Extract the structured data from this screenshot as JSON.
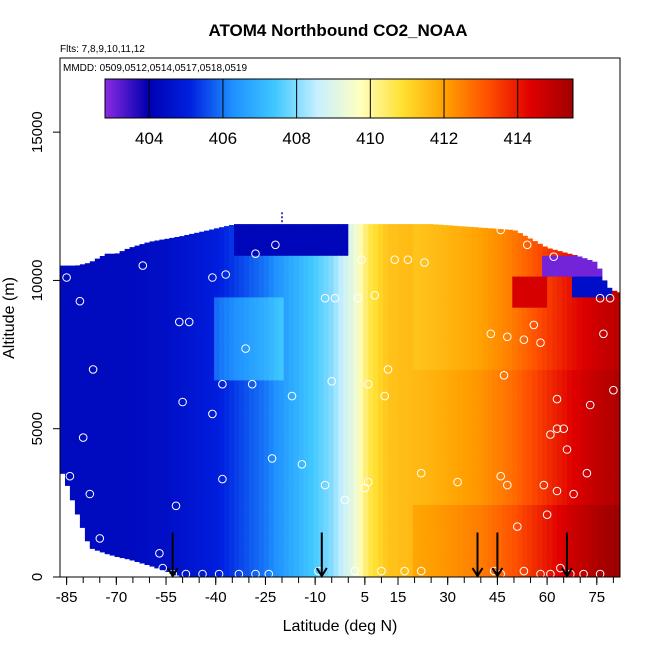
{
  "chart_data": {
    "type": "heatmap",
    "title": "ATOM4 Northbound CO2_NOAA",
    "subtitle_flights": "Flts: 7,8,9,10,11,12",
    "subtitle_dates": "MMDD: 0509,0512,0514,0517,0518,0519",
    "xlabel": "Latitude (deg N)",
    "ylabel": "Altitude (m)",
    "xlim": [
      -87,
      82
    ],
    "ylim": [
      0,
      17500
    ],
    "x_tick_labels": [
      "-85",
      "-70",
      "-55",
      "-40",
      "-25",
      "-10",
      "5",
      "15",
      "30",
      "45",
      "60",
      "75"
    ],
    "x_tick_values": [
      -85,
      -70,
      -55,
      -40,
      -25,
      -10,
      5,
      15,
      30,
      45,
      60,
      75
    ],
    "y_tick_labels": [
      "0",
      "5000",
      "10000",
      "15000"
    ],
    "y_tick_values": [
      0,
      5000,
      10000,
      15000
    ],
    "colorbar": {
      "range": [
        402.8,
        415.5
      ],
      "tick_values": [
        404,
        406,
        408,
        410,
        412,
        414
      ],
      "tick_labels": [
        "404",
        "406",
        "408",
        "410",
        "412",
        "414"
      ],
      "colors": [
        "#8b2be2",
        "#0000b0",
        "#0020e0",
        "#1e90ff",
        "#40c8ff",
        "#c8f0ff",
        "#ffffc0",
        "#ffe030",
        "#ffa000",
        "#ff5000",
        "#e00000",
        "#a00000"
      ]
    },
    "curtain_profile": [
      {
        "lat": -86,
        "top": 10500,
        "bottom": 3500
      },
      {
        "lat": -82,
        "top": 10500,
        "bottom": 2200
      },
      {
        "lat": -78,
        "top": 10600,
        "bottom": 1000
      },
      {
        "lat": -73,
        "top": 10900,
        "bottom": 800
      },
      {
        "lat": -70,
        "top": 10900,
        "bottom": 700
      },
      {
        "lat": -66,
        "top": 11100,
        "bottom": 600
      },
      {
        "lat": -60,
        "top": 11300,
        "bottom": 400
      },
      {
        "lat": -50,
        "top": 11500,
        "bottom": 0
      },
      {
        "lat": -34,
        "top": 11900,
        "bottom": 0
      },
      {
        "lat": 25,
        "top": 11900,
        "bottom": 0
      },
      {
        "lat": 50,
        "top": 11700,
        "bottom": 0
      },
      {
        "lat": 60,
        "top": 11100,
        "bottom": 0
      },
      {
        "lat": 70,
        "top": 10800,
        "bottom": 0
      },
      {
        "lat": 75,
        "top": 10600,
        "bottom": 0
      },
      {
        "lat": 78,
        "top": 9800,
        "bottom": 0
      },
      {
        "lat": 81,
        "top": 9600,
        "bottom": 0
      }
    ],
    "co2_by_latitude": [
      {
        "lat": -86,
        "value": 404.3
      },
      {
        "lat": -70,
        "value": 404.3
      },
      {
        "lat": -55,
        "value": 404.5
      },
      {
        "lat": -40,
        "value": 405.0
      },
      {
        "lat": -25,
        "value": 406.0
      },
      {
        "lat": -15,
        "value": 407.0
      },
      {
        "lat": -5,
        "value": 408.0
      },
      {
        "lat": 2,
        "value": 409.3
      },
      {
        "lat": 6,
        "value": 410.6
      },
      {
        "lat": 12,
        "value": 411.4
      },
      {
        "lat": 25,
        "value": 411.7
      },
      {
        "lat": 40,
        "value": 412.2
      },
      {
        "lat": 50,
        "value": 412.8
      },
      {
        "lat": 58,
        "value": 413.5
      },
      {
        "lat": 66,
        "value": 414.2
      },
      {
        "lat": 75,
        "value": 414.9
      },
      {
        "lat": 81,
        "value": 415.2
      }
    ],
    "upper_layer_anomalies": [
      {
        "lat_from": 58,
        "lat_to": 76,
        "alt_from": 10100,
        "alt_to": 10700,
        "value": 403.0
      },
      {
        "lat_from": 68,
        "lat_to": 80,
        "alt_from": 9400,
        "alt_to": 10100,
        "value": 404.5
      },
      {
        "lat_from": 50,
        "lat_to": 60,
        "alt_from": 9000,
        "alt_to": 10000,
        "value": 414.5
      },
      {
        "lat_from": -34,
        "lat_to": 0,
        "alt_from": 11000,
        "alt_to": 11900,
        "value": 404.2
      }
    ],
    "sample_points": [
      {
        "lat": -85,
        "alt": 10100
      },
      {
        "lat": -81,
        "alt": 9300
      },
      {
        "lat": -80,
        "alt": 4700
      },
      {
        "lat": -77,
        "alt": 7000
      },
      {
        "lat": -78,
        "alt": 2800
      },
      {
        "lat": -84,
        "alt": 3400
      },
      {
        "lat": -75,
        "alt": 1300
      },
      {
        "lat": -62,
        "alt": 10500
      },
      {
        "lat": -51,
        "alt": 8600
      },
      {
        "lat": -48,
        "alt": 8600
      },
      {
        "lat": -50,
        "alt": 5900
      },
      {
        "lat": -52,
        "alt": 2400
      },
      {
        "lat": -57,
        "alt": 800
      },
      {
        "lat": -56,
        "alt": 300
      },
      {
        "lat": -53,
        "alt": 100
      },
      {
        "lat": -49,
        "alt": 100
      },
      {
        "lat": -44,
        "alt": 100
      },
      {
        "lat": -39,
        "alt": 100
      },
      {
        "lat": -33,
        "alt": 100
      },
      {
        "lat": -28,
        "alt": 100
      },
      {
        "lat": -24,
        "alt": 100
      },
      {
        "lat": -41,
        "alt": 10100
      },
      {
        "lat": -37,
        "alt": 10200
      },
      {
        "lat": -28,
        "alt": 10900
      },
      {
        "lat": -22,
        "alt": 11200
      },
      {
        "lat": -31,
        "alt": 7700
      },
      {
        "lat": -29,
        "alt": 6500
      },
      {
        "lat": -38,
        "alt": 6500
      },
      {
        "lat": -41,
        "alt": 5500
      },
      {
        "lat": -38,
        "alt": 3300
      },
      {
        "lat": -23,
        "alt": 4000
      },
      {
        "lat": -17,
        "alt": 6100
      },
      {
        "lat": -14,
        "alt": 3800
      },
      {
        "lat": -7,
        "alt": 9400
      },
      {
        "lat": -4,
        "alt": 9400
      },
      {
        "lat": -5,
        "alt": 6600
      },
      {
        "lat": -7,
        "alt": 3100
      },
      {
        "lat": -1,
        "alt": 2600
      },
      {
        "lat": 2,
        "alt": 200
      },
      {
        "lat": -9,
        "alt": 200
      },
      {
        "lat": 3,
        "alt": 9400
      },
      {
        "lat": 4,
        "alt": 10700
      },
      {
        "lat": 8,
        "alt": 9500
      },
      {
        "lat": 6,
        "alt": 6500
      },
      {
        "lat": 11,
        "alt": 6100
      },
      {
        "lat": 12,
        "alt": 7000
      },
      {
        "lat": 5,
        "alt": 3000
      },
      {
        "lat": 6,
        "alt": 3200
      },
      {
        "lat": 10,
        "alt": 200
      },
      {
        "lat": 14,
        "alt": 10700
      },
      {
        "lat": 18,
        "alt": 10700
      },
      {
        "lat": 23,
        "alt": 10600
      },
      {
        "lat": 17,
        "alt": 200
      },
      {
        "lat": 22,
        "alt": 200
      },
      {
        "lat": 22,
        "alt": 3500
      },
      {
        "lat": 33,
        "alt": 3200
      },
      {
        "lat": 43,
        "alt": 8200
      },
      {
        "lat": 48,
        "alt": 8100
      },
      {
        "lat": 47,
        "alt": 6800
      },
      {
        "lat": 53,
        "alt": 8000
      },
      {
        "lat": 56,
        "alt": 8500
      },
      {
        "lat": 58,
        "alt": 7900
      },
      {
        "lat": 46,
        "alt": 3400
      },
      {
        "lat": 48,
        "alt": 3100
      },
      {
        "lat": 51,
        "alt": 1700
      },
      {
        "lat": 59,
        "alt": 3100
      },
      {
        "lat": 60,
        "alt": 2100
      },
      {
        "lat": 63,
        "alt": 2900
      },
      {
        "lat": 66,
        "alt": 4300
      },
      {
        "lat": 68,
        "alt": 2800
      },
      {
        "lat": 72,
        "alt": 3500
      },
      {
        "lat": 63,
        "alt": 6000
      },
      {
        "lat": 65,
        "alt": 5000
      },
      {
        "lat": 61,
        "alt": 4800
      },
      {
        "lat": 63,
        "alt": 5000
      },
      {
        "lat": 73,
        "alt": 5800
      },
      {
        "lat": 77,
        "alt": 8200
      },
      {
        "lat": 80,
        "alt": 6300
      },
      {
        "lat": 76,
        "alt": 9400
      },
      {
        "lat": 79,
        "alt": 9400
      },
      {
        "lat": 62,
        "alt": 10800
      },
      {
        "lat": 54,
        "alt": 11200
      },
      {
        "lat": 46,
        "alt": 11700
      },
      {
        "lat": 44,
        "alt": 200
      },
      {
        "lat": 46,
        "alt": 100
      },
      {
        "lat": 53,
        "alt": 200
      },
      {
        "lat": 58,
        "alt": 100
      },
      {
        "lat": 61,
        "alt": 100
      },
      {
        "lat": 64,
        "alt": 300
      },
      {
        "lat": 67,
        "alt": 100
      },
      {
        "lat": 71,
        "alt": 100
      },
      {
        "lat": 76,
        "alt": 100
      }
    ],
    "arrow_latitudes": [
      -53,
      -8,
      39,
      45,
      66
    ]
  }
}
